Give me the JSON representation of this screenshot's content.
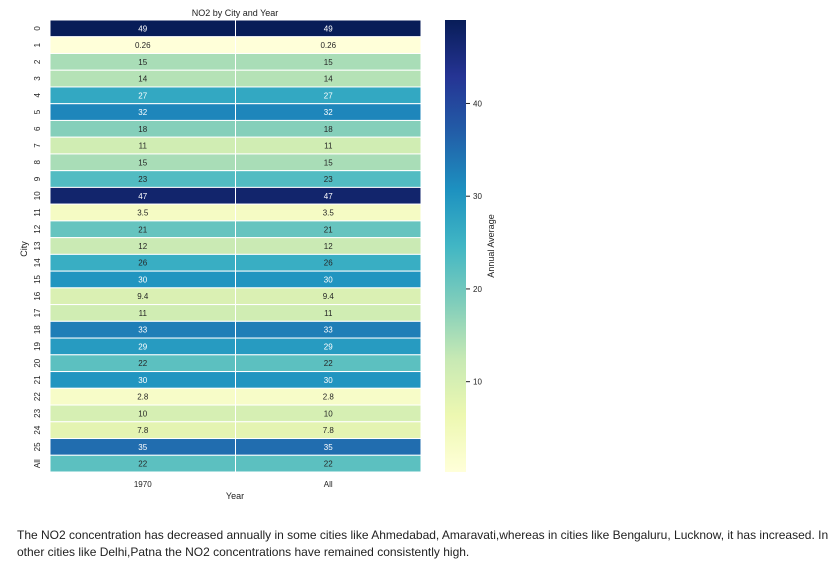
{
  "chart_data": {
    "type": "heatmap",
    "title": "NO2 by City and Year",
    "xlabel": "Year",
    "ylabel": "City",
    "x_categories": [
      "1970",
      "All"
    ],
    "y_categories": [
      "0",
      "1",
      "2",
      "3",
      "4",
      "5",
      "6",
      "7",
      "8",
      "9",
      "10",
      "11",
      "12",
      "13",
      "14",
      "15",
      "16",
      "17",
      "18",
      "19",
      "20",
      "21",
      "22",
      "23",
      "24",
      "25",
      "All"
    ],
    "value_labels": [
      "49",
      "0.26",
      "15",
      "14",
      "27",
      "32",
      "18",
      "11",
      "15",
      "23",
      "47",
      "3.5",
      "21",
      "12",
      "26",
      "30",
      "9.4",
      "11",
      "33",
      "29",
      "22",
      "30",
      "2.8",
      "10",
      "7.8",
      "35",
      "22"
    ],
    "values": [
      [
        49,
        49
      ],
      [
        0.26,
        0.26
      ],
      [
        15,
        15
      ],
      [
        14,
        14
      ],
      [
        27,
        27
      ],
      [
        32,
        32
      ],
      [
        18,
        18
      ],
      [
        11,
        11
      ],
      [
        15,
        15
      ],
      [
        23,
        23
      ],
      [
        47,
        47
      ],
      [
        3.5,
        3.5
      ],
      [
        21,
        21
      ],
      [
        12,
        12
      ],
      [
        26,
        26
      ],
      [
        30,
        30
      ],
      [
        9.4,
        9.4
      ],
      [
        11,
        11
      ],
      [
        33,
        33
      ],
      [
        29,
        29
      ],
      [
        22,
        22
      ],
      [
        30,
        30
      ],
      [
        2.8,
        2.8
      ],
      [
        10,
        10
      ],
      [
        7.8,
        7.8
      ],
      [
        35,
        35
      ],
      [
        22,
        22
      ]
    ],
    "colorbar": {
      "label": "Annual Average",
      "ticks": [
        "10",
        "20",
        "30",
        "40"
      ],
      "range": [
        0.26,
        49
      ],
      "colormap": [
        "#ffffd9",
        "#edf8b1",
        "#c7e9b4",
        "#7fcdbb",
        "#41b6c4",
        "#1d91c0",
        "#225ea8",
        "#253494",
        "#081d58"
      ]
    }
  },
  "caption": "The NO2 concentration has decreased annually in some cities like Ahmedabad, Amaravati,whereas in cities like Bengaluru, Lucknow, it has increased. In other cities like Delhi,Patna the NO2 concentrations have remained consistently high."
}
